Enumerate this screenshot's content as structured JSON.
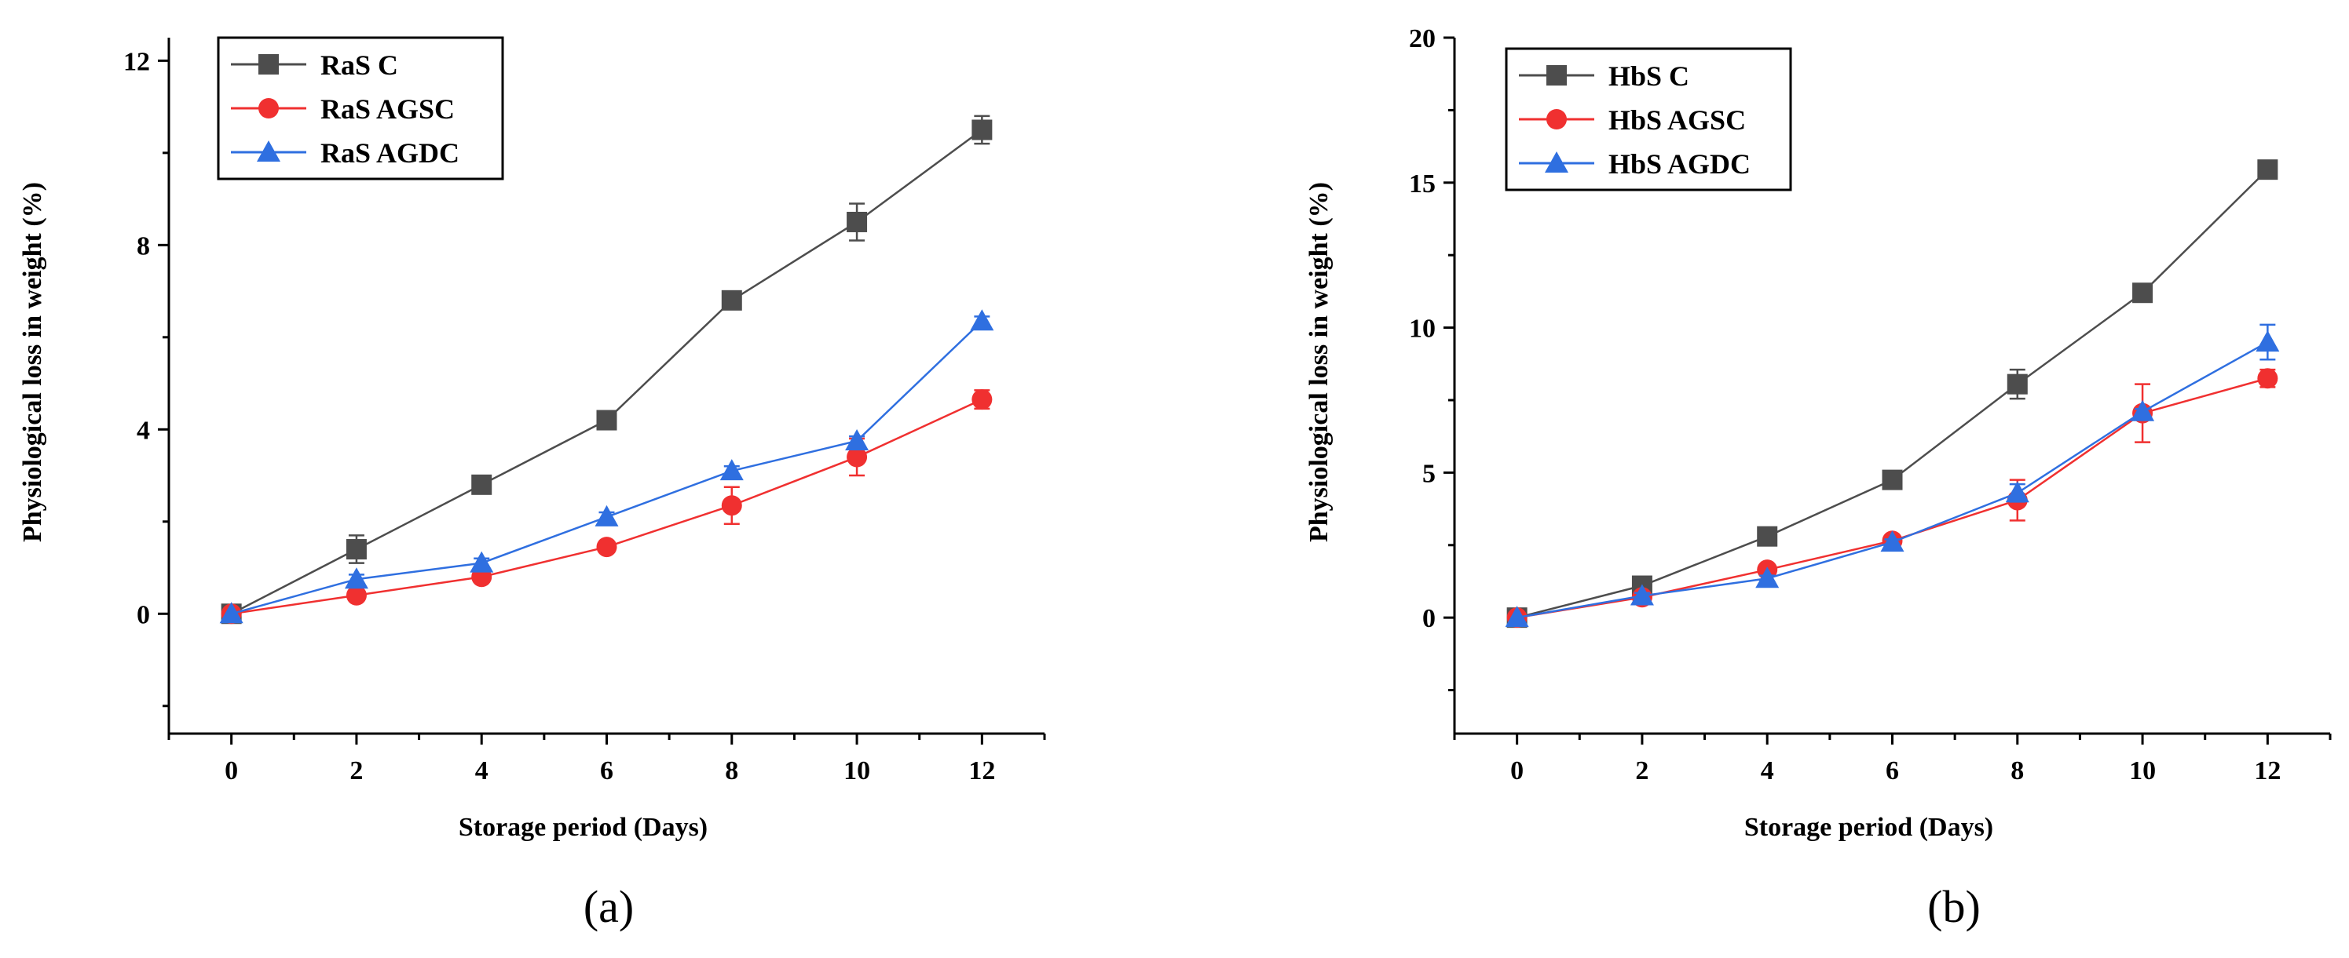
{
  "panels": [
    {
      "id": "a",
      "panel_label": "(a)",
      "chart_data": {
        "type": "line",
        "title": "",
        "xlabel": "Storage period (Days)",
        "ylabel": "Physiological loss in weight (%)",
        "x": [
          0,
          2,
          4,
          6,
          8,
          10,
          12
        ],
        "xlim": [
          -1,
          13
        ],
        "ylim": [
          -2.6,
          12.5
        ],
        "xticks": [
          0,
          2,
          4,
          6,
          8,
          10,
          12
        ],
        "yticks": [
          0,
          4,
          8,
          12
        ],
        "ytick_labels": [
          "0",
          "4",
          "8",
          "12"
        ],
        "grid": false,
        "legend_position": "top-left",
        "series": [
          {
            "name": "RaS C",
            "color": "#4d4d4d",
            "marker": "square",
            "values": [
              0,
              1.4,
              2.8,
              4.2,
              6.8,
              8.5,
              10.5
            ],
            "errors": [
              0,
              0.3,
              0.1,
              0.1,
              0.1,
              0.4,
              0.3
            ]
          },
          {
            "name": "RaS AGSC",
            "color": "#f03030",
            "marker": "circle",
            "values": [
              0,
              0.4,
              0.8,
              1.45,
              2.35,
              3.4,
              4.65
            ],
            "errors": [
              0,
              0.1,
              0.1,
              0.05,
              0.4,
              0.4,
              0.2
            ]
          },
          {
            "name": "RaS AGDC",
            "color": "#2f6fe0",
            "marker": "triangle",
            "values": [
              0,
              0.75,
              1.1,
              2.1,
              3.1,
              3.75,
              6.35
            ],
            "errors": [
              0,
              0.1,
              0.1,
              0.1,
              0.1,
              0.1,
              0.1
            ]
          }
        ]
      }
    },
    {
      "id": "b",
      "panel_label": "(b)",
      "chart_data": {
        "type": "line",
        "title": "",
        "xlabel": "Storage period (Days)",
        "ylabel": "Physiological loss in weight (%)",
        "x": [
          0,
          2,
          4,
          6,
          8,
          10,
          12
        ],
        "xlim": [
          -1,
          13
        ],
        "ylim": [
          -4,
          20
        ],
        "xticks": [
          0,
          2,
          4,
          6,
          8,
          10,
          12
        ],
        "yticks": [
          0,
          5,
          10,
          15,
          20
        ],
        "ytick_labels": [
          "0",
          "5",
          "10",
          "15",
          "20"
        ],
        "grid": false,
        "legend_position": "top-left",
        "series": [
          {
            "name": "HbS C",
            "color": "#4d4d4d",
            "marker": "square",
            "values": [
              0,
              1.1,
              2.8,
              4.75,
              8.05,
              11.2,
              15.45
            ],
            "errors": [
              0,
              0.1,
              0.1,
              0.1,
              0.5,
              0.1,
              0.1
            ]
          },
          {
            "name": "HbS AGSC",
            "color": "#f03030",
            "marker": "circle",
            "values": [
              0,
              0.7,
              1.65,
              2.65,
              4.05,
              7.05,
              8.25
            ],
            "errors": [
              0,
              0.1,
              0.1,
              0.1,
              0.7,
              1.0,
              0.3
            ]
          },
          {
            "name": "HbS AGDC",
            "color": "#2f6fe0",
            "marker": "triangle",
            "values": [
              0,
              0.75,
              1.35,
              2.6,
              4.3,
              7.1,
              9.5
            ],
            "errors": [
              0,
              0.1,
              0.1,
              0.1,
              0.3,
              0.1,
              0.6
            ]
          }
        ]
      }
    }
  ]
}
